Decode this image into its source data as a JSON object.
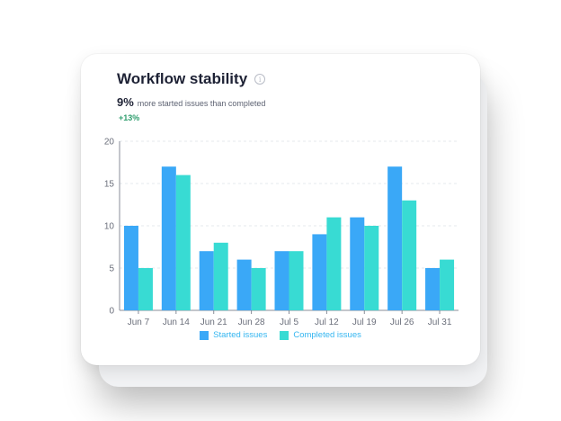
{
  "card": {
    "title": "Workflow stability",
    "headline_value": "9%",
    "headline_text": "more started issues than completed",
    "change": "+13%"
  },
  "colors": {
    "started": "#3aa8f7",
    "completed": "#38dbd3",
    "legend_text": "#35b6f0",
    "axis": "#6b6f7b",
    "grid": "#e6e8ec"
  },
  "chart_data": {
    "type": "bar",
    "categories": [
      "Jun 7",
      "Jun 14",
      "Jun 21",
      "Jun 28",
      "Jul 5",
      "Jul 12",
      "Jul 19",
      "Jul 26",
      "Jul 31"
    ],
    "series": [
      {
        "name": "Started issues",
        "values": [
          10,
          17,
          7,
          6,
          7,
          9,
          11,
          17,
          5
        ]
      },
      {
        "name": "Completed issues",
        "values": [
          5,
          16,
          8,
          5,
          7,
          11,
          10,
          13,
          6
        ]
      }
    ],
    "yticks": [
      0,
      5,
      10,
      15,
      20
    ],
    "ylim": [
      0,
      20
    ],
    "grid": true,
    "legend": "bottom"
  }
}
